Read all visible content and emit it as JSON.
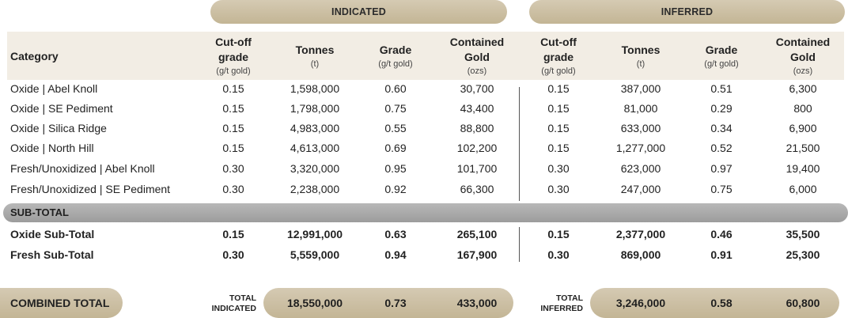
{
  "groups": {
    "indicated": "INDICATED",
    "inferred": "INFERRED"
  },
  "headers": {
    "category": "Category",
    "cutoff": "Cut-off grade",
    "cutoff_unit": "(g/t gold)",
    "tonnes": "Tonnes",
    "tonnes_unit": "(t)",
    "grade": "Grade",
    "grade_unit": "(g/t gold)",
    "gold": "Contained Gold",
    "gold_unit": "(ozs)"
  },
  "rows": [
    {
      "category": "Oxide | Abel Knoll",
      "ind_cutoff": "0.15",
      "ind_tonnes": "1,598,000",
      "ind_grade": "0.60",
      "ind_gold": "30,700",
      "inf_cutoff": "0.15",
      "inf_tonnes": "387,000",
      "inf_grade": "0.51",
      "inf_gold": "6,300"
    },
    {
      "category": "Oxide | SE Pediment",
      "ind_cutoff": "0.15",
      "ind_tonnes": "1,798,000",
      "ind_grade": "0.75",
      "ind_gold": "43,400",
      "inf_cutoff": "0.15",
      "inf_tonnes": "81,000",
      "inf_grade": "0.29",
      "inf_gold": "800"
    },
    {
      "category": "Oxide | Silica Ridge",
      "ind_cutoff": "0.15",
      "ind_tonnes": "4,983,000",
      "ind_grade": "0.55",
      "ind_gold": "88,800",
      "inf_cutoff": "0.15",
      "inf_tonnes": "633,000",
      "inf_grade": "0.34",
      "inf_gold": "6,900"
    },
    {
      "category": "Oxide | North Hill",
      "ind_cutoff": "0.15",
      "ind_tonnes": "4,613,000",
      "ind_grade": "0.69",
      "ind_gold": "102,200",
      "inf_cutoff": "0.15",
      "inf_tonnes": "1,277,000",
      "inf_grade": "0.52",
      "inf_gold": "21,500"
    },
    {
      "category": "Fresh/Unoxidized | Abel Knoll",
      "ind_cutoff": "0.30",
      "ind_tonnes": "3,320,000",
      "ind_grade": "0.95",
      "ind_gold": "101,700",
      "inf_cutoff": "0.30",
      "inf_tonnes": "623,000",
      "inf_grade": "0.97",
      "inf_gold": "19,400"
    },
    {
      "category": "Fresh/Unoxidized | SE Pediment",
      "ind_cutoff": "0.30",
      "ind_tonnes": "2,238,000",
      "ind_grade": "0.92",
      "ind_gold": "66,300",
      "inf_cutoff": "0.30",
      "inf_tonnes": "247,000",
      "inf_grade": "0.75",
      "inf_gold": "6,000"
    }
  ],
  "subtotal_label": "SUB-TOTAL",
  "subtotals": [
    {
      "category": "Oxide Sub-Total",
      "ind_cutoff": "0.15",
      "ind_tonnes": "12,991,000",
      "ind_grade": "0.63",
      "ind_gold": "265,100",
      "inf_cutoff": "0.15",
      "inf_tonnes": "2,377,000",
      "inf_grade": "0.46",
      "inf_gold": "35,500"
    },
    {
      "category": "Fresh Sub-Total",
      "ind_cutoff": "0.30",
      "ind_tonnes": "5,559,000",
      "ind_grade": "0.94",
      "ind_gold": "167,900",
      "inf_cutoff": "0.30",
      "inf_tonnes": "869,000",
      "inf_grade": "0.91",
      "inf_gold": "25,300"
    }
  ],
  "totals": {
    "combined_label": "COMBINED TOTAL",
    "indicated_label_1": "TOTAL",
    "indicated_label_2": "INDICATED",
    "indicated_tonnes": "18,550,000",
    "indicated_grade": "0.73",
    "indicated_gold": "433,000",
    "inferred_label_1": "TOTAL",
    "inferred_label_2": "INFERRED",
    "inferred_tonnes": "3,246,000",
    "inferred_grade": "0.58",
    "inferred_gold": "60,800"
  },
  "colors": {
    "pill": "#c9bc9f",
    "header_bg": "#f2ede4",
    "subtotal_band": "#a8a8a8"
  }
}
